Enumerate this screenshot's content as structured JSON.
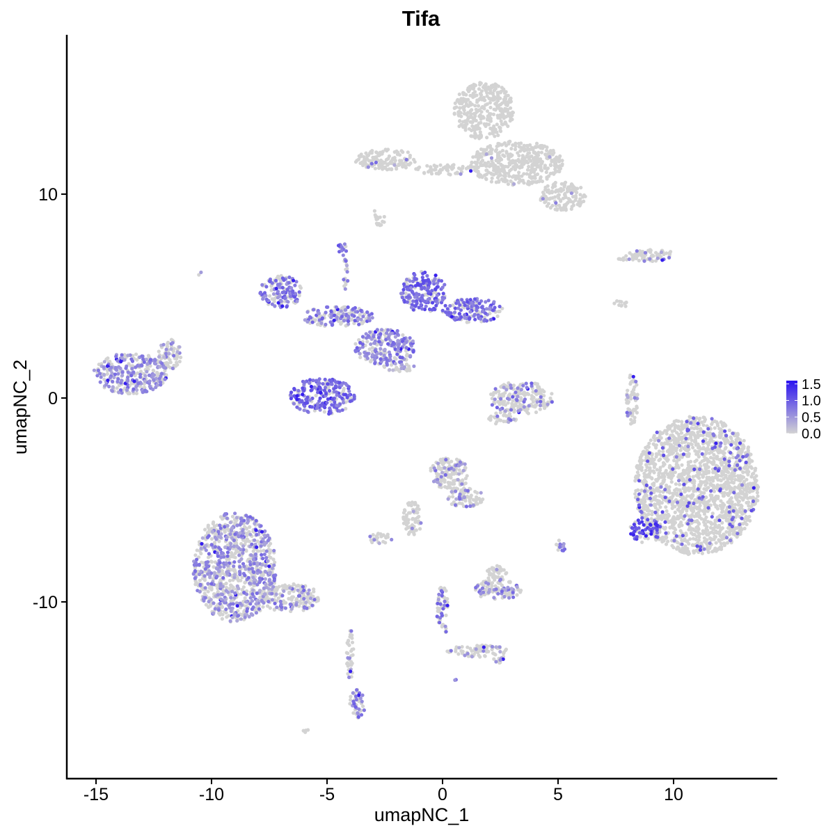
{
  "chart_data": {
    "type": "scatter",
    "title": "Tifa",
    "xlabel": "umapNC_1",
    "ylabel": "umapNC_2",
    "xlim": [
      -16.5,
      14.4
    ],
    "ylim": [
      -17.9,
      17.9
    ],
    "x_ticks": [
      "-15",
      "-10",
      "-5",
      "0",
      "5",
      "10"
    ],
    "x_tick_values": [
      -15,
      -10,
      -5,
      0,
      5,
      10
    ],
    "y_ticks": [
      "10",
      "0",
      "-10"
    ],
    "y_tick_values": [
      10,
      0,
      -10
    ],
    "grid": false,
    "legend_position": "right",
    "color_scale": {
      "low_color": "#d3d3d3",
      "high_color": "#2b13f0",
      "min": 0.0,
      "max": 1.6,
      "labels": [
        "1.5",
        "1.0",
        "0.5",
        "0.0"
      ],
      "label_values": [
        1.5,
        1.0,
        0.5,
        0.0
      ]
    },
    "clusters": [
      {
        "cx": 11.0,
        "cy": -4.3,
        "rx": 2.7,
        "ry": 3.4,
        "expr_frac": 0.07,
        "expr_mean": 0.9
      },
      {
        "cx": 8.8,
        "cy": -6.5,
        "rx": 0.7,
        "ry": 0.6,
        "expr_frac": 0.5,
        "expr_mean": 1.2
      },
      {
        "cx": -9.0,
        "cy": -8.3,
        "rx": 1.8,
        "ry": 2.7,
        "expr_frac": 0.4,
        "expr_mean": 0.6
      },
      {
        "cx": -6.6,
        "cy": -9.8,
        "rx": 1.3,
        "ry": 0.7,
        "expr_frac": 0.25,
        "expr_mean": 0.6
      },
      {
        "cx": -3.7,
        "cy": -15.0,
        "rx": 0.35,
        "ry": 0.7,
        "expr_frac": 0.4,
        "expr_mean": 0.7
      },
      {
        "cx": -4.0,
        "cy": -12.6,
        "rx": 0.15,
        "ry": 1.3,
        "expr_frac": 0.2,
        "expr_mean": 0.6
      },
      {
        "cx": -13.5,
        "cy": 1.2,
        "rx": 1.6,
        "ry": 1.0,
        "expr_frac": 0.55,
        "expr_mean": 0.6
      },
      {
        "cx": -11.8,
        "cy": 2.1,
        "rx": 0.5,
        "ry": 0.8,
        "expr_frac": 0.2,
        "expr_mean": 0.5
      },
      {
        "cx": -5.2,
        "cy": 0.1,
        "rx": 1.4,
        "ry": 0.9,
        "expr_frac": 0.75,
        "expr_mean": 0.9
      },
      {
        "cx": -7.0,
        "cy": 5.2,
        "rx": 0.9,
        "ry": 0.8,
        "expr_frac": 0.6,
        "expr_mean": 0.75
      },
      {
        "cx": -4.6,
        "cy": 4.0,
        "rx": 1.6,
        "ry": 0.5,
        "expr_frac": 0.55,
        "expr_mean": 0.7
      },
      {
        "cx": -0.8,
        "cy": 5.2,
        "rx": 1.0,
        "ry": 1.0,
        "expr_frac": 0.7,
        "expr_mean": 0.9
      },
      {
        "cx": 1.3,
        "cy": 4.3,
        "rx": 1.3,
        "ry": 0.6,
        "expr_frac": 0.65,
        "expr_mean": 0.85
      },
      {
        "cx": -2.5,
        "cy": 2.5,
        "rx": 1.3,
        "ry": 0.9,
        "expr_frac": 0.55,
        "expr_mean": 0.7
      },
      {
        "cx": -4.4,
        "cy": 7.3,
        "rx": 0.25,
        "ry": 0.35,
        "expr_frac": 0.7,
        "expr_mean": 0.8
      },
      {
        "cx": -4.2,
        "cy": 5.9,
        "rx": 0.1,
        "ry": 1.0,
        "expr_frac": 0.4,
        "expr_mean": 0.6
      },
      {
        "cx": -1.9,
        "cy": 1.5,
        "rx": 0.7,
        "ry": 0.2,
        "expr_frac": 0.25,
        "expr_mean": 0.5
      },
      {
        "cx": 3.4,
        "cy": 0.0,
        "rx": 1.4,
        "ry": 0.8,
        "expr_frac": 0.2,
        "expr_mean": 0.7
      },
      {
        "cx": 2.6,
        "cy": -1.0,
        "rx": 0.6,
        "ry": 0.3,
        "expr_frac": 0.15,
        "expr_mean": 0.6
      },
      {
        "cx": 1.8,
        "cy": 14.1,
        "rx": 1.3,
        "ry": 1.4,
        "expr_frac": 0.0,
        "expr_mean": 0.0
      },
      {
        "cx": 3.2,
        "cy": 11.5,
        "rx": 2.0,
        "ry": 1.1,
        "expr_frac": 0.01,
        "expr_mean": 0.6
      },
      {
        "cx": 5.2,
        "cy": 9.9,
        "rx": 1.0,
        "ry": 0.7,
        "expr_frac": 0.01,
        "expr_mean": 0.6
      },
      {
        "cx": -2.4,
        "cy": 11.7,
        "rx": 1.4,
        "ry": 0.5,
        "expr_frac": 0.02,
        "expr_mean": 0.6
      },
      {
        "cx": 0.2,
        "cy": 11.2,
        "rx": 1.4,
        "ry": 0.25,
        "expr_frac": 0.01,
        "expr_mean": 0.6
      },
      {
        "cx": -2.7,
        "cy": 8.7,
        "rx": 0.25,
        "ry": 0.3,
        "expr_frac": 0.0,
        "expr_mean": 0.0
      },
      {
        "cx": 9.0,
        "cy": 7.0,
        "rx": 1.1,
        "ry": 0.3,
        "expr_frac": 0.15,
        "expr_mean": 0.6
      },
      {
        "cx": 8.0,
        "cy": 6.9,
        "rx": 0.5,
        "ry": 0.15,
        "expr_frac": 0.05,
        "expr_mean": 0.6
      },
      {
        "cx": 8.2,
        "cy": -0.1,
        "rx": 0.25,
        "ry": 1.3,
        "expr_frac": 0.12,
        "expr_mean": 0.6
      },
      {
        "cx": 0.3,
        "cy": -3.7,
        "rx": 0.9,
        "ry": 0.8,
        "expr_frac": 0.2,
        "expr_mean": 0.6
      },
      {
        "cx": 1.0,
        "cy": -4.9,
        "rx": 0.8,
        "ry": 0.5,
        "expr_frac": 0.2,
        "expr_mean": 0.6
      },
      {
        "cx": -1.3,
        "cy": -5.9,
        "rx": 0.4,
        "ry": 0.9,
        "expr_frac": 0.1,
        "expr_mean": 0.6
      },
      {
        "cx": -2.7,
        "cy": -6.9,
        "rx": 0.5,
        "ry": 0.3,
        "expr_frac": 0.15,
        "expr_mean": 0.6
      },
      {
        "cx": 2.4,
        "cy": -9.4,
        "rx": 1.0,
        "ry": 0.5,
        "expr_frac": 0.4,
        "expr_mean": 0.6
      },
      {
        "cx": 2.3,
        "cy": -8.6,
        "rx": 0.5,
        "ry": 0.4,
        "expr_frac": 0.05,
        "expr_mean": 0.6
      },
      {
        "cx": 5.1,
        "cy": -7.3,
        "rx": 0.2,
        "ry": 0.35,
        "expr_frac": 0.5,
        "expr_mean": 0.6
      },
      {
        "cx": 0.0,
        "cy": -10.5,
        "rx": 0.25,
        "ry": 1.3,
        "expr_frac": 0.25,
        "expr_mean": 0.7
      },
      {
        "cx": 1.5,
        "cy": -12.4,
        "rx": 1.3,
        "ry": 0.3,
        "expr_frac": 0.15,
        "expr_mean": 0.6
      },
      {
        "cx": 2.4,
        "cy": -12.8,
        "rx": 0.3,
        "ry": 0.2,
        "expr_frac": 0.5,
        "expr_mean": 0.6
      },
      {
        "cx": 0.6,
        "cy": -13.9,
        "rx": 0.1,
        "ry": 0.1,
        "expr_frac": 0.8,
        "expr_mean": 0.7
      },
      {
        "cx": -6.0,
        "cy": -16.3,
        "rx": 0.2,
        "ry": 0.1,
        "expr_frac": 0.0,
        "expr_mean": 0.0
      },
      {
        "cx": -2.9,
        "cy": 9.0,
        "rx": 0.05,
        "ry": 0.4,
        "expr_frac": 0.0,
        "expr_mean": 0.0
      },
      {
        "cx": -10.5,
        "cy": 6.1,
        "rx": 0.08,
        "ry": 0.08,
        "expr_frac": 0.5,
        "expr_mean": 0.6
      },
      {
        "cx": 7.7,
        "cy": 4.6,
        "rx": 0.3,
        "ry": 0.2,
        "expr_frac": 0.0,
        "expr_mean": 0.0
      }
    ]
  }
}
